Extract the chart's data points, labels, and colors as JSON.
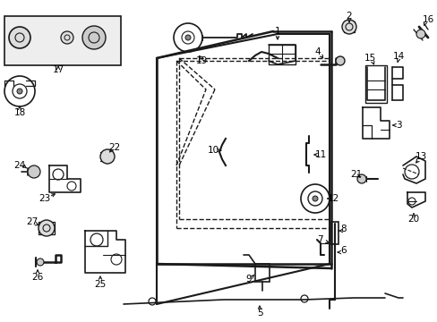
{
  "bg_color": "#ffffff",
  "line_color": "#1a1a1a",
  "figsize": [
    4.89,
    3.6
  ],
  "dpi": 100,
  "label_fontsize": 7.5
}
